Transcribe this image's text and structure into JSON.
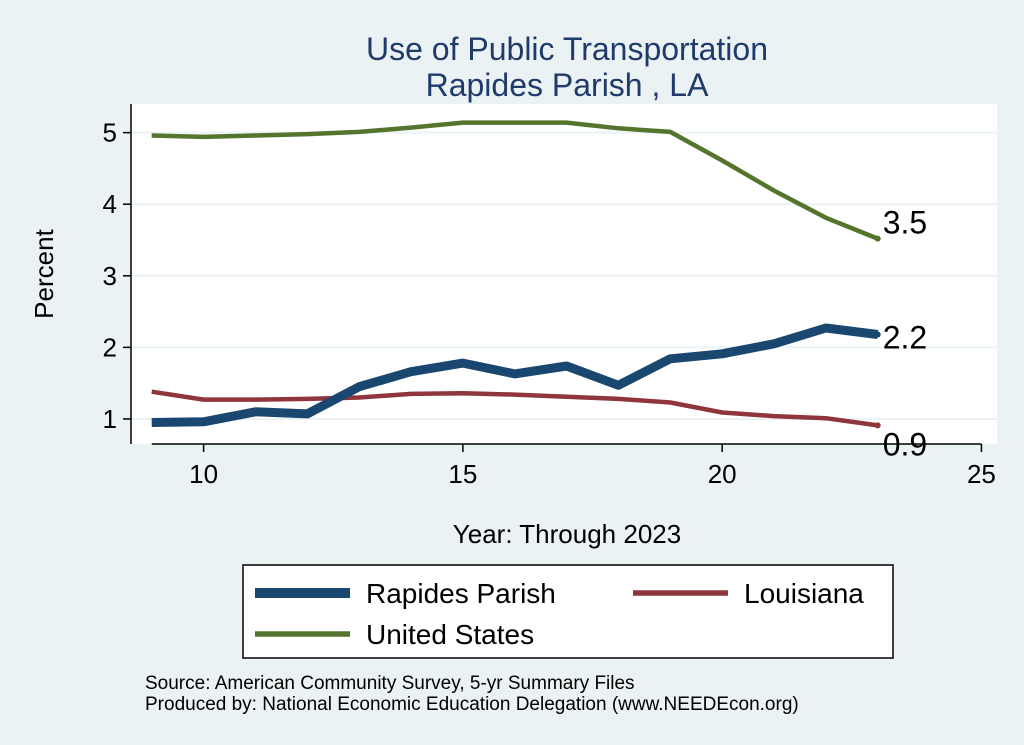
{
  "chart_data": {
    "type": "line",
    "title": "Use of Public Transportation",
    "subtitle": "Rapides Parish , LA",
    "xlabel": "Year: Through 2023",
    "ylabel": "Percent",
    "xlim": [
      8.6,
      25.3
    ],
    "ylim": [
      0.65,
      5.4
    ],
    "xticks": [
      10,
      15,
      20,
      25
    ],
    "yticks": [
      1,
      2,
      3,
      4,
      5
    ],
    "grid": true,
    "legend_position": "bottom",
    "x": [
      9,
      10,
      11,
      12,
      13,
      14,
      15,
      16,
      17,
      18,
      19,
      20,
      21,
      22,
      23
    ],
    "series": [
      {
        "name": "Rapides Parish",
        "color": "#1a476f",
        "values": [
          0.95,
          0.96,
          1.1,
          1.07,
          1.45,
          1.66,
          1.78,
          1.63,
          1.74,
          1.47,
          1.84,
          1.91,
          2.05,
          2.27,
          2.18
        ],
        "end_label": "2.2"
      },
      {
        "name": "Louisiana",
        "color": "#90353b",
        "values": [
          1.38,
          1.27,
          1.27,
          1.28,
          1.3,
          1.35,
          1.36,
          1.34,
          1.31,
          1.28,
          1.23,
          1.09,
          1.04,
          1.01,
          0.91
        ],
        "end_label": "0.9"
      },
      {
        "name": "United States",
        "color": "#55752f",
        "values": [
          4.96,
          4.94,
          4.96,
          4.98,
          5.01,
          5.07,
          5.14,
          5.14,
          5.14,
          5.06,
          5.01,
          4.61,
          4.19,
          3.81,
          3.52
        ],
        "end_label": "3.5"
      }
    ]
  },
  "notes": {
    "source": "Source: American Community Survey, 5-yr Summary Files",
    "produced": "Produced by: National Economic Education Delegation (www.NEEDEcon.org)"
  }
}
